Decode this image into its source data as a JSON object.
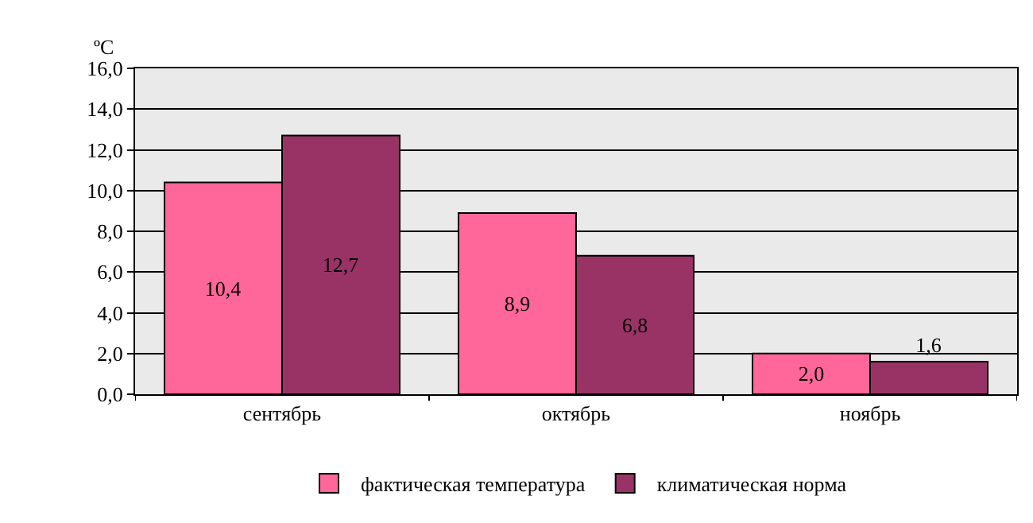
{
  "chart_data": {
    "type": "bar",
    "ylabel": "ºC",
    "categories": [
      "сентябрь",
      "октябрь",
      "ноябрь"
    ],
    "series": [
      {
        "name": "фактическая температура",
        "color": "#ff6699",
        "values": [
          10.4,
          8.9,
          2.0
        ],
        "value_labels": [
          "10,4",
          "8,9",
          "2,0"
        ]
      },
      {
        "name": "климатическая норма",
        "color": "#993366",
        "values": [
          12.7,
          6.8,
          1.6
        ],
        "value_labels": [
          "12,7",
          "6,8",
          "1,6"
        ]
      }
    ],
    "ylim": [
      0,
      16
    ],
    "yticks": [
      {
        "value": 0,
        "label": "0,0"
      },
      {
        "value": 2,
        "label": "2,0"
      },
      {
        "value": 4,
        "label": "4,0"
      },
      {
        "value": 6,
        "label": "6,0"
      },
      {
        "value": 8,
        "label": "8,0"
      },
      {
        "value": 10,
        "label": "10,0"
      },
      {
        "value": 12,
        "label": "12,0"
      },
      {
        "value": 14,
        "label": "14,0"
      },
      {
        "value": 16,
        "label": "16,0"
      }
    ],
    "grid": "y",
    "legend": "bottom"
  }
}
